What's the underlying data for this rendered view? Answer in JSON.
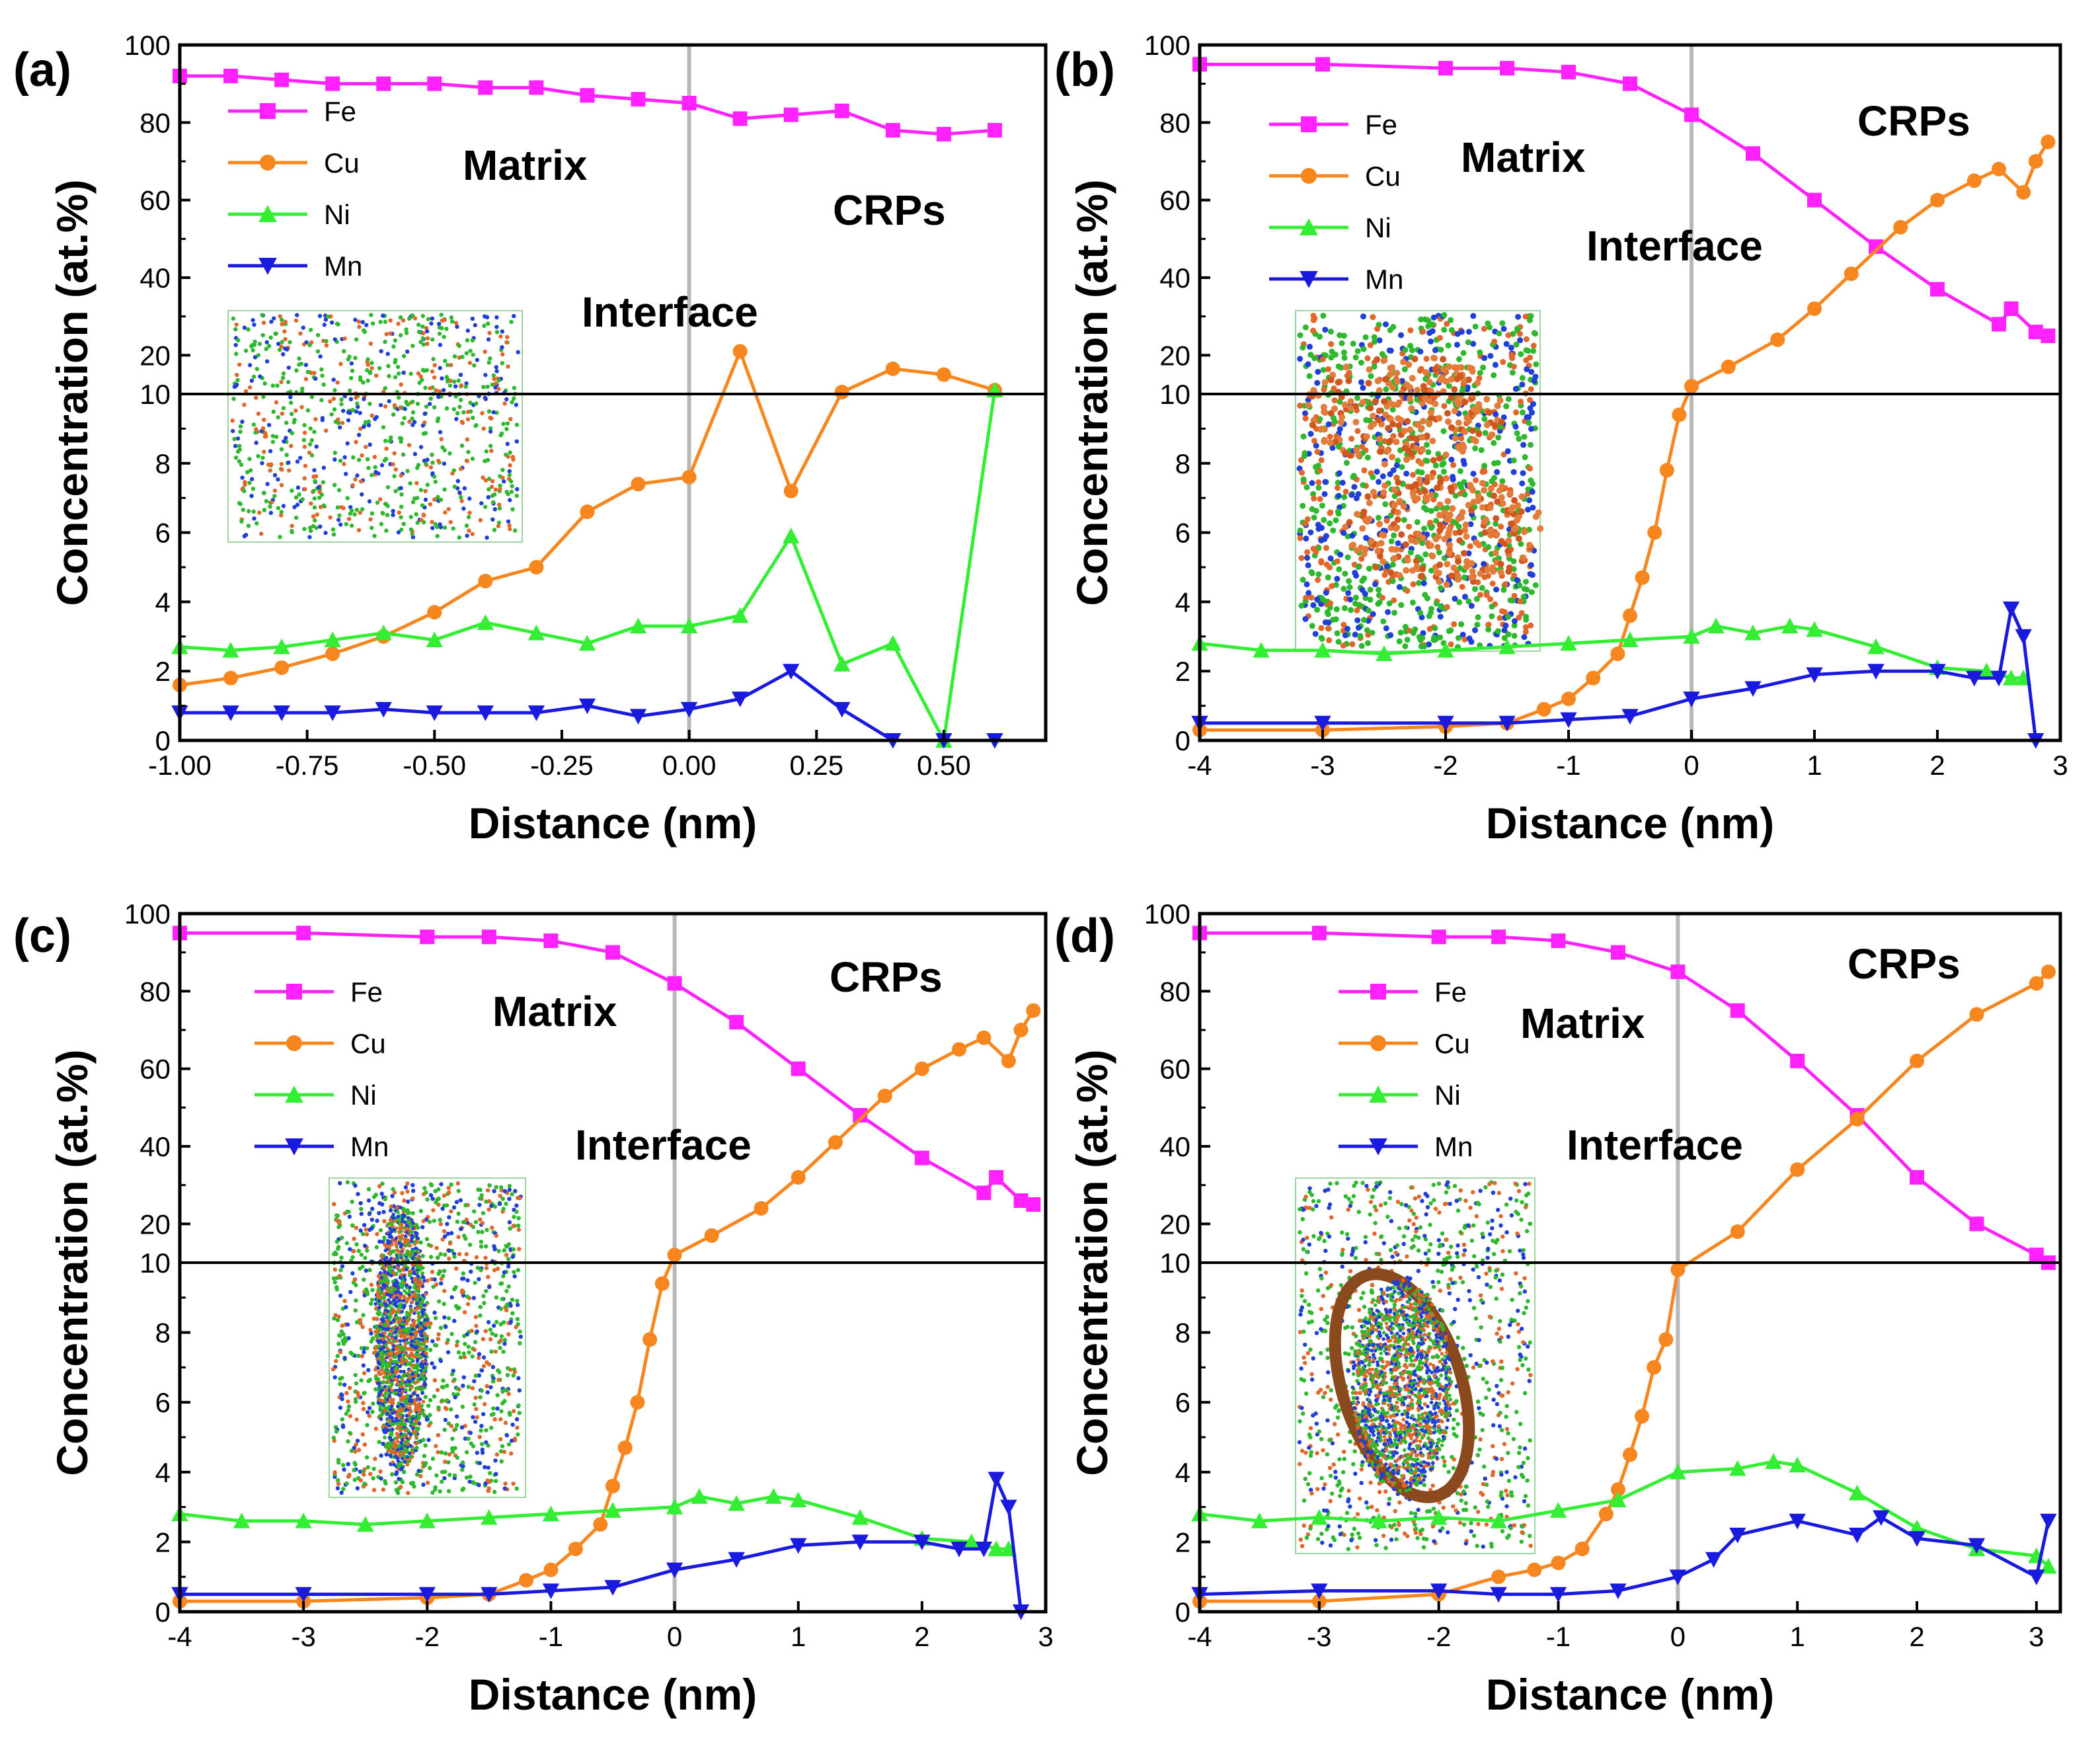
{
  "chart_data": [
    {
      "panel": "(a)",
      "type": "line",
      "broken_y_axis": true,
      "xlabel": "Distance (nm)",
      "ylabel": "Concentration (at.%)",
      "xlim": [
        -1.0,
        0.7
      ],
      "xticks": [
        -1.0,
        -0.75,
        -0.5,
        -0.25,
        0.0,
        0.25,
        0.5
      ],
      "xtick_labels": [
        "-1.00",
        "-0.75",
        "-0.50",
        "-0.25",
        "0.00",
        "0.25",
        "0.50"
      ],
      "ylim_lower": [
        0,
        10
      ],
      "ylim_upper": [
        10,
        100
      ],
      "yticks_lower": [
        "0",
        "2",
        "4",
        "6",
        "8",
        "10"
      ],
      "yticks_upper": [
        "20",
        "40",
        "60",
        "80",
        "100"
      ],
      "annotations": [
        "Matrix",
        "CRPs",
        "Interface"
      ],
      "legend": [
        "Fe",
        "Cu",
        "Ni",
        "Mn"
      ],
      "colors": {
        "Fe": "#ff22ff",
        "Cu": "#f7861f",
        "Ni": "#33ee33",
        "Mn": "#1a1adf",
        "interface_line": "#b8b8b8"
      },
      "series": [
        {
          "name": "Fe",
          "x": [
            -1.0,
            -0.9,
            -0.8,
            -0.7,
            -0.6,
            -0.5,
            -0.4,
            -0.3,
            -0.2,
            -0.1,
            0.0,
            0.1,
            0.2,
            0.3,
            0.4,
            0.5,
            0.6
          ],
          "values": [
            92,
            92,
            91,
            90,
            90,
            90,
            89,
            89,
            87,
            86,
            85,
            81,
            82,
            83,
            78,
            77,
            78
          ]
        },
        {
          "name": "Cu",
          "x": [
            -1.0,
            -0.9,
            -0.8,
            -0.7,
            -0.6,
            -0.5,
            -0.4,
            -0.3,
            -0.2,
            -0.1,
            0.0,
            0.1,
            0.2,
            0.3,
            0.4,
            0.5,
            0.6
          ],
          "values": [
            1.6,
            1.8,
            2.1,
            2.5,
            3.0,
            3.7,
            4.6,
            5.0,
            6.6,
            7.4,
            7.6,
            21,
            7.2,
            10.5,
            16.5,
            15.0,
            11.0
          ]
        },
        {
          "name": "Ni",
          "x": [
            -1.0,
            -0.9,
            -0.8,
            -0.7,
            -0.6,
            -0.5,
            -0.4,
            -0.3,
            -0.2,
            -0.1,
            0.0,
            0.1,
            0.2,
            0.3,
            0.4,
            0.5,
            0.6
          ],
          "values": [
            2.7,
            2.6,
            2.7,
            2.9,
            3.1,
            2.9,
            3.4,
            3.1,
            2.8,
            3.3,
            3.3,
            3.6,
            5.9,
            2.2,
            2.8,
            0.0,
            11.0
          ]
        },
        {
          "name": "Mn",
          "x": [
            -1.0,
            -0.9,
            -0.8,
            -0.7,
            -0.6,
            -0.5,
            -0.4,
            -0.3,
            -0.2,
            -0.1,
            0.0,
            0.1,
            0.2,
            0.3,
            0.4,
            0.5,
            0.6
          ],
          "values": [
            0.8,
            0.8,
            0.8,
            0.8,
            0.9,
            0.8,
            0.8,
            0.8,
            1.0,
            0.7,
            0.9,
            1.2,
            2.0,
            0.9,
            0.0,
            0.0,
            0.0
          ]
        }
      ]
    },
    {
      "panel": "(b)",
      "type": "line",
      "broken_y_axis": true,
      "xlabel": "Distance (nm)",
      "ylabel": "Concentration (at.%)",
      "xlim": [
        -4,
        3
      ],
      "xticks": [
        -4,
        -3,
        -2,
        -1,
        0,
        1,
        2,
        3
      ],
      "xtick_labels": [
        "-4",
        "-3",
        "-2",
        "-1",
        "0",
        "1",
        "2",
        "3"
      ],
      "ylim_lower": [
        0,
        10
      ],
      "ylim_upper": [
        10,
        100
      ],
      "yticks_lower": [
        "0",
        "2",
        "4",
        "6",
        "8",
        "10"
      ],
      "yticks_upper": [
        "20",
        "40",
        "60",
        "80",
        "100"
      ],
      "annotations": [
        "Matrix",
        "Interface",
        "CRPs"
      ],
      "legend": [
        "Fe",
        "Cu",
        "Ni",
        "Mn"
      ],
      "series": [
        {
          "name": "Fe",
          "x": [
            -4.0,
            -3.0,
            -2.0,
            -1.5,
            -1.0,
            -0.5,
            0.0,
            0.5,
            1.0,
            1.5,
            2.0,
            2.5,
            2.6,
            2.8,
            2.9
          ],
          "values": [
            95,
            95,
            94,
            94,
            93,
            90,
            82,
            72,
            60,
            48,
            37,
            28,
            32,
            26,
            25
          ]
        },
        {
          "name": "Cu",
          "x": [
            -4.0,
            -3.0,
            -2.0,
            -1.5,
            -1.2,
            -1.0,
            -0.8,
            -0.6,
            -0.5,
            -0.4,
            -0.3,
            -0.2,
            -0.1,
            0.0,
            0.3,
            0.7,
            1.0,
            1.3,
            1.7,
            2.0,
            2.3,
            2.5,
            2.7,
            2.8,
            2.9
          ],
          "values": [
            0.3,
            0.3,
            0.4,
            0.5,
            0.9,
            1.2,
            1.8,
            2.5,
            3.6,
            4.7,
            6.0,
            7.8,
            9.4,
            12,
            17,
            24,
            32,
            41,
            53,
            60,
            65,
            68,
            62,
            70,
            75
          ]
        },
        {
          "name": "Ni",
          "x": [
            -4.0,
            -3.5,
            -3.0,
            -2.5,
            -2.0,
            -1.5,
            -1.0,
            -0.5,
            0.0,
            0.2,
            0.5,
            0.8,
            1.0,
            1.5,
            2.0,
            2.4,
            2.6,
            2.7
          ],
          "values": [
            2.8,
            2.6,
            2.6,
            2.5,
            2.6,
            2.7,
            2.8,
            2.9,
            3.0,
            3.3,
            3.1,
            3.3,
            3.2,
            2.7,
            2.1,
            2.0,
            1.8,
            1.8
          ]
        },
        {
          "name": "Mn",
          "x": [
            -4.0,
            -3.0,
            -2.0,
            -1.5,
            -1.0,
            -0.5,
            0.0,
            0.5,
            1.0,
            1.5,
            2.0,
            2.3,
            2.5,
            2.6,
            2.7,
            2.8
          ],
          "values": [
            0.5,
            0.5,
            0.5,
            0.5,
            0.6,
            0.7,
            1.2,
            1.5,
            1.9,
            2.0,
            2.0,
            1.8,
            1.8,
            3.8,
            3.0,
            0.0
          ]
        }
      ]
    },
    {
      "panel": "(c)",
      "type": "line",
      "broken_y_axis": true,
      "xlabel": "Distance (nm)",
      "ylabel": "Concentration (at.%)",
      "xlim": [
        -4,
        3
      ],
      "xticks": [
        -4,
        -3,
        -2,
        -1,
        0,
        1,
        2,
        3
      ],
      "xtick_labels": [
        "-4",
        "-3",
        "-2",
        "-1",
        "0",
        "1",
        "2",
        "3"
      ],
      "ylim_lower": [
        0,
        10
      ],
      "ylim_upper": [
        10,
        100
      ],
      "yticks_lower": [
        "0",
        "2",
        "4",
        "6",
        "8",
        "10"
      ],
      "yticks_upper": [
        "20",
        "40",
        "60",
        "80",
        "100"
      ],
      "annotations": [
        "Matrix",
        "CRPs",
        "Interface"
      ],
      "legend": [
        "Fe",
        "Cu",
        "Ni",
        "Mn"
      ],
      "series": [
        {
          "name": "Fe",
          "x": [
            -4.0,
            -3.0,
            -2.0,
            -1.5,
            -1.0,
            -0.5,
            0.0,
            0.5,
            1.0,
            1.5,
            2.0,
            2.5,
            2.6,
            2.8,
            2.9
          ],
          "values": [
            95,
            95,
            94,
            94,
            93,
            90,
            82,
            72,
            60,
            48,
            37,
            28,
            32,
            26,
            25
          ]
        },
        {
          "name": "Cu",
          "x": [
            -4.0,
            -3.0,
            -2.0,
            -1.5,
            -1.2,
            -1.0,
            -0.8,
            -0.6,
            -0.5,
            -0.4,
            -0.3,
            -0.2,
            -0.1,
            0.0,
            0.3,
            0.7,
            1.0,
            1.3,
            1.7,
            2.0,
            2.3,
            2.5,
            2.7,
            2.8,
            2.9
          ],
          "values": [
            0.3,
            0.3,
            0.4,
            0.5,
            0.9,
            1.2,
            1.8,
            2.5,
            3.6,
            4.7,
            6.0,
            7.8,
            9.4,
            12,
            17,
            24,
            32,
            41,
            53,
            60,
            65,
            68,
            62,
            70,
            75
          ]
        },
        {
          "name": "Ni",
          "x": [
            -4.0,
            -3.5,
            -3.0,
            -2.5,
            -2.0,
            -1.5,
            -1.0,
            -0.5,
            0.0,
            0.2,
            0.5,
            0.8,
            1.0,
            1.5,
            2.0,
            2.4,
            2.6,
            2.7
          ],
          "values": [
            2.8,
            2.6,
            2.6,
            2.5,
            2.6,
            2.7,
            2.8,
            2.9,
            3.0,
            3.3,
            3.1,
            3.3,
            3.2,
            2.7,
            2.1,
            2.0,
            1.8,
            1.8
          ]
        },
        {
          "name": "Mn",
          "x": [
            -4.0,
            -3.0,
            -2.0,
            -1.5,
            -1.0,
            -0.5,
            0.0,
            0.5,
            1.0,
            1.5,
            2.0,
            2.3,
            2.5,
            2.6,
            2.7,
            2.8
          ],
          "values": [
            0.5,
            0.5,
            0.5,
            0.5,
            0.6,
            0.7,
            1.2,
            1.5,
            1.9,
            2.0,
            2.0,
            1.8,
            1.8,
            3.8,
            3.0,
            0.0
          ]
        }
      ]
    },
    {
      "panel": "(d)",
      "type": "line",
      "broken_y_axis": true,
      "xlabel": "Distance (nm)",
      "ylabel": "Concentration (at.%)",
      "xlim": [
        -4,
        3.2
      ],
      "xticks": [
        -4,
        -3,
        -2,
        -1,
        0,
        1,
        2,
        3
      ],
      "xtick_labels": [
        "-4",
        "-3",
        "-2",
        "-1",
        "0",
        "1",
        "2",
        "3"
      ],
      "ylim_lower": [
        0,
        10
      ],
      "ylim_upper": [
        10,
        100
      ],
      "yticks_lower": [
        "0",
        "2",
        "4",
        "6",
        "8",
        "10"
      ],
      "yticks_upper": [
        "20",
        "40",
        "60",
        "80",
        "100"
      ],
      "annotations": [
        "Matrix",
        "CRPs",
        "Interface"
      ],
      "legend": [
        "Fe",
        "Cu",
        "Ni",
        "Mn"
      ],
      "series": [
        {
          "name": "Fe",
          "x": [
            -4.0,
            -3.0,
            -2.0,
            -1.5,
            -1.0,
            -0.5,
            0.0,
            0.5,
            1.0,
            1.5,
            2.0,
            2.5,
            3.0,
            3.1
          ],
          "values": [
            95,
            95,
            94,
            94,
            93,
            90,
            85,
            75,
            62,
            48,
            32,
            20,
            12,
            10
          ]
        },
        {
          "name": "Cu",
          "x": [
            -4.0,
            -3.0,
            -2.0,
            -1.5,
            -1.2,
            -1.0,
            -0.8,
            -0.6,
            -0.5,
            -0.4,
            -0.3,
            -0.2,
            -0.1,
            0.0,
            0.5,
            1.0,
            1.5,
            2.0,
            2.5,
            3.0,
            3.1
          ],
          "values": [
            0.3,
            0.3,
            0.5,
            1.0,
            1.2,
            1.4,
            1.8,
            2.8,
            3.5,
            4.5,
            5.6,
            7.0,
            7.8,
            9.8,
            18,
            34,
            47,
            62,
            74,
            82,
            85
          ]
        },
        {
          "name": "Ni",
          "x": [
            -4.0,
            -3.5,
            -3.0,
            -2.5,
            -2.0,
            -1.5,
            -1.0,
            -0.5,
            0.0,
            0.5,
            0.8,
            1.0,
            1.5,
            2.0,
            2.5,
            3.0,
            3.1
          ],
          "values": [
            2.8,
            2.6,
            2.7,
            2.6,
            2.7,
            2.6,
            2.9,
            3.2,
            4.0,
            4.1,
            4.3,
            4.2,
            3.4,
            2.4,
            1.8,
            1.6,
            1.3
          ]
        },
        {
          "name": "Mn",
          "x": [
            -4.0,
            -3.0,
            -2.0,
            -1.5,
            -1.0,
            -0.5,
            0.0,
            0.3,
            0.5,
            1.0,
            1.5,
            1.7,
            2.0,
            2.5,
            3.0,
            3.1
          ],
          "values": [
            0.5,
            0.6,
            0.6,
            0.5,
            0.5,
            0.6,
            1.0,
            1.5,
            2.2,
            2.6,
            2.2,
            2.7,
            2.1,
            1.9,
            1.0,
            2.6
          ]
        }
      ]
    }
  ]
}
